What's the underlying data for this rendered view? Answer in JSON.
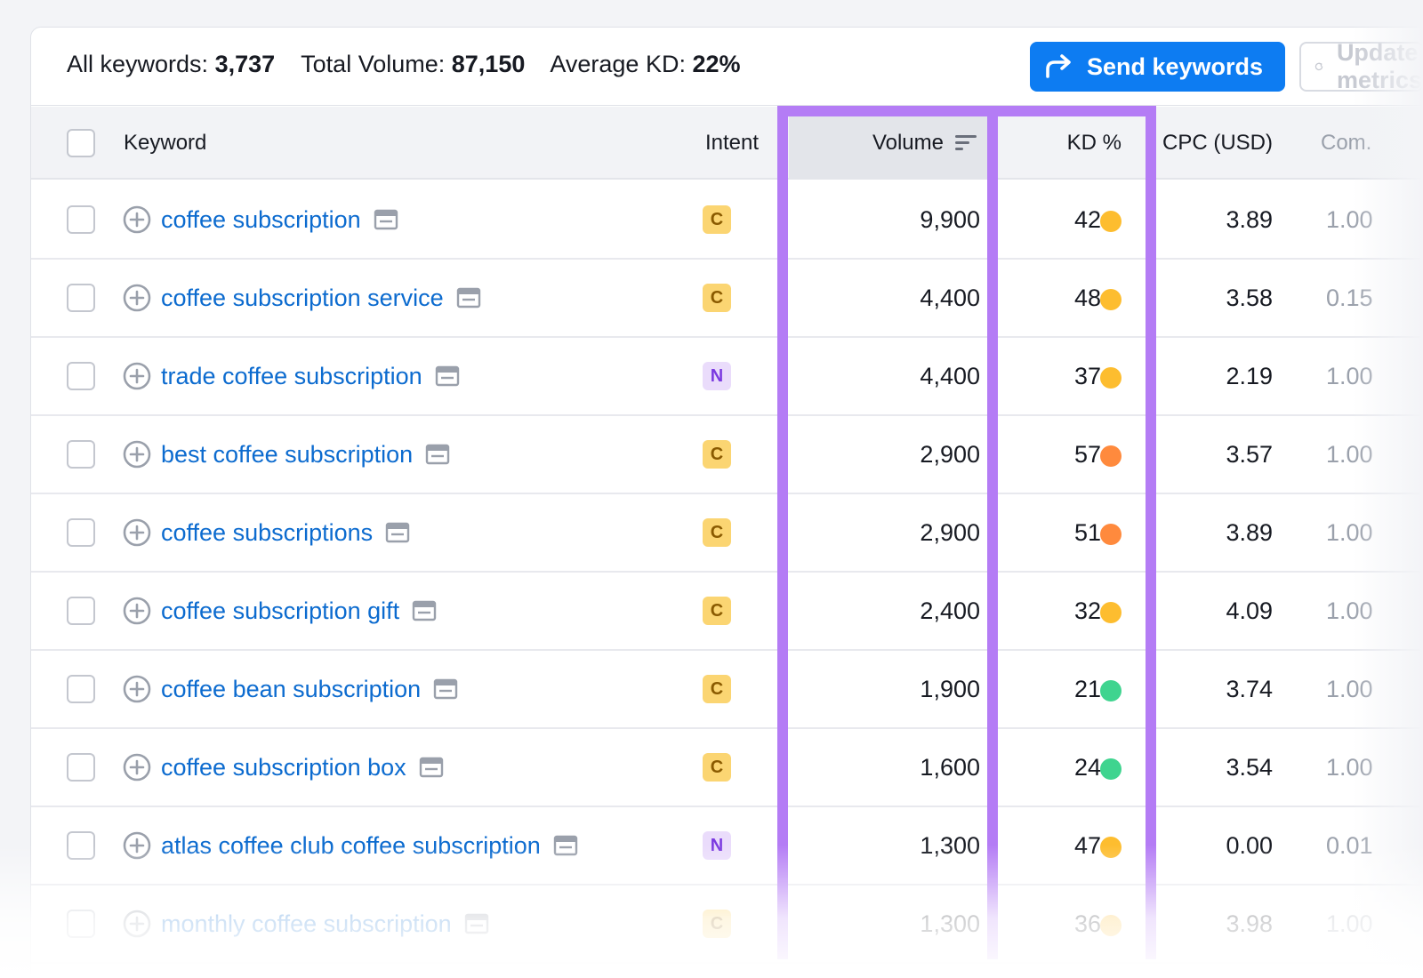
{
  "summary": {
    "all_keywords_label": "All keywords:",
    "all_keywords_value": "3,737",
    "total_volume_label": "Total Volume:",
    "total_volume_value": "87,150",
    "avg_kd_label": "Average KD:",
    "avg_kd_value": "22%"
  },
  "toolbar": {
    "send_label": "Send keywords",
    "update_label": "Update metrics"
  },
  "columns": {
    "keyword": "Keyword",
    "intent": "Intent",
    "volume": "Volume",
    "kd": "KD %",
    "cpc": "CPC (USD)",
    "com": "Com."
  },
  "colors": {
    "highlight": "#b47cf5",
    "accent": "#0d7cf2",
    "kd_yellow": "#fdbd2f",
    "kd_orange": "#ff8a3d",
    "kd_green": "#3fd48f"
  },
  "rows": [
    {
      "keyword": "coffee subscription",
      "intent": "C",
      "volume": "9,900",
      "kd": "42",
      "kd_color": "yellow",
      "cpc": "3.89",
      "com": "1.00"
    },
    {
      "keyword": "coffee subscription service",
      "intent": "C",
      "volume": "4,400",
      "kd": "48",
      "kd_color": "yellow",
      "cpc": "3.58",
      "com": "0.15"
    },
    {
      "keyword": "trade coffee subscription",
      "intent": "N",
      "volume": "4,400",
      "kd": "37",
      "kd_color": "yellow",
      "cpc": "2.19",
      "com": "1.00"
    },
    {
      "keyword": "best coffee subscription",
      "intent": "C",
      "volume": "2,900",
      "kd": "57",
      "kd_color": "orange",
      "cpc": "3.57",
      "com": "1.00"
    },
    {
      "keyword": "coffee subscriptions",
      "intent": "C",
      "volume": "2,900",
      "kd": "51",
      "kd_color": "orange",
      "cpc": "3.89",
      "com": "1.00"
    },
    {
      "keyword": "coffee subscription gift",
      "intent": "C",
      "volume": "2,400",
      "kd": "32",
      "kd_color": "yellow",
      "cpc": "4.09",
      "com": "1.00"
    },
    {
      "keyword": "coffee bean subscription",
      "intent": "C",
      "volume": "1,900",
      "kd": "21",
      "kd_color": "green",
      "cpc": "3.74",
      "com": "1.00"
    },
    {
      "keyword": "coffee subscription box",
      "intent": "C",
      "volume": "1,600",
      "kd": "24",
      "kd_color": "green",
      "cpc": "3.54",
      "com": "1.00"
    },
    {
      "keyword": "atlas coffee club coffee subscription",
      "intent": "N",
      "volume": "1,300",
      "kd": "47",
      "kd_color": "yellow",
      "cpc": "0.00",
      "com": "0.01"
    },
    {
      "keyword": "monthly coffee subscription",
      "intent": "C",
      "volume": "1,300",
      "kd": "36",
      "kd_color": "yellow",
      "cpc": "3.98",
      "com": "1.00"
    }
  ]
}
